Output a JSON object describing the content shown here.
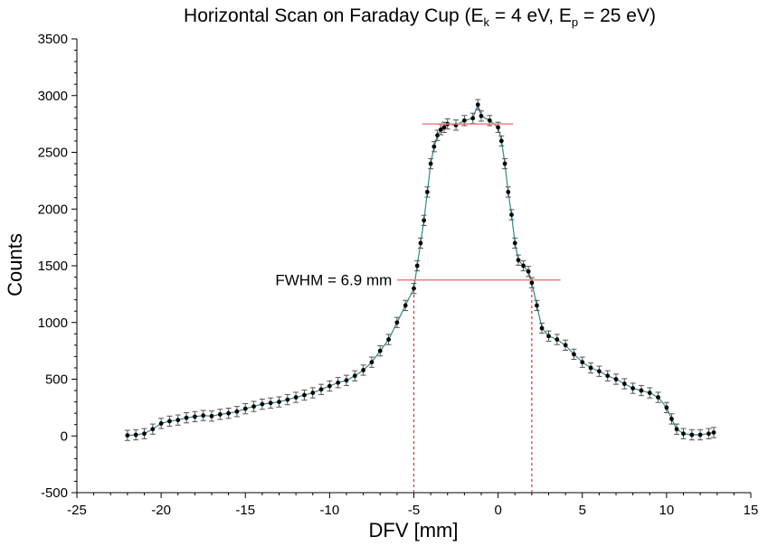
{
  "chart_data": {
    "type": "scatter",
    "title": {
      "prefix": "Horizontal Scan on Faraday Cup (E",
      "sub1": "k",
      "mid": " = 4 eV, E",
      "sub2": "p",
      "suffix": " = 25 eV)"
    },
    "xlabel": "DFV [mm]",
    "ylabel": "Counts",
    "xlim": [
      -25,
      15
    ],
    "ylim": [
      -500,
      3500
    ],
    "xticks": [
      -25,
      -20,
      -15,
      -10,
      -5,
      0,
      5,
      10,
      15
    ],
    "xtick_labels": [
      "-25",
      "-20",
      "-15",
      "-10",
      "-5",
      "0",
      "5",
      "10",
      "15"
    ],
    "yticks": [
      -500,
      0,
      500,
      1000,
      1500,
      2000,
      2500,
      3000,
      3500
    ],
    "ytick_labels": [
      "-500",
      "0",
      "500",
      "1000",
      "1500",
      "2000",
      "2500",
      "3000",
      "3500"
    ],
    "grid": false,
    "series": [
      {
        "marker_color": "#000000",
        "line_color": "#2a8c8c",
        "error": 45,
        "points": [
          [
            -22.0,
            5
          ],
          [
            -21.5,
            10
          ],
          [
            -21.0,
            20
          ],
          [
            -20.5,
            60
          ],
          [
            -20.0,
            110
          ],
          [
            -19.5,
            130
          ],
          [
            -19.0,
            140
          ],
          [
            -18.5,
            160
          ],
          [
            -18.0,
            170
          ],
          [
            -17.5,
            180
          ],
          [
            -17.0,
            175
          ],
          [
            -16.5,
            190
          ],
          [
            -16.0,
            200
          ],
          [
            -15.5,
            215
          ],
          [
            -15.0,
            240
          ],
          [
            -14.5,
            260
          ],
          [
            -14.0,
            280
          ],
          [
            -13.5,
            290
          ],
          [
            -13.0,
            300
          ],
          [
            -12.5,
            320
          ],
          [
            -12.0,
            340
          ],
          [
            -11.5,
            360
          ],
          [
            -11.0,
            380
          ],
          [
            -10.5,
            410
          ],
          [
            -10.0,
            440
          ],
          [
            -9.5,
            470
          ],
          [
            -9.0,
            490
          ],
          [
            -8.5,
            530
          ],
          [
            -8.0,
            580
          ],
          [
            -7.5,
            650
          ],
          [
            -7.0,
            750
          ],
          [
            -6.5,
            850
          ],
          [
            -6.0,
            1000
          ],
          [
            -5.5,
            1150
          ],
          [
            -5.0,
            1300
          ],
          [
            -4.8,
            1500
          ],
          [
            -4.6,
            1700
          ],
          [
            -4.4,
            1900
          ],
          [
            -4.2,
            2150
          ],
          [
            -4.0,
            2400
          ],
          [
            -3.8,
            2550
          ],
          [
            -3.6,
            2650
          ],
          [
            -3.4,
            2700
          ],
          [
            -3.2,
            2720
          ],
          [
            -3.0,
            2750
          ],
          [
            -2.5,
            2740
          ],
          [
            -2.0,
            2780
          ],
          [
            -1.5,
            2800
          ],
          [
            -1.2,
            2920
          ],
          [
            -1.0,
            2820
          ],
          [
            -0.5,
            2780
          ],
          [
            0.0,
            2720
          ],
          [
            0.2,
            2600
          ],
          [
            0.4,
            2400
          ],
          [
            0.6,
            2150
          ],
          [
            0.8,
            1950
          ],
          [
            1.0,
            1700
          ],
          [
            1.2,
            1550
          ],
          [
            1.5,
            1500
          ],
          [
            1.8,
            1450
          ],
          [
            2.0,
            1350
          ],
          [
            2.3,
            1150
          ],
          [
            2.6,
            950
          ],
          [
            3.0,
            880
          ],
          [
            3.5,
            850
          ],
          [
            4.0,
            800
          ],
          [
            4.5,
            720
          ],
          [
            5.0,
            650
          ],
          [
            5.5,
            600
          ],
          [
            6.0,
            570
          ],
          [
            6.5,
            530
          ],
          [
            7.0,
            500
          ],
          [
            7.5,
            460
          ],
          [
            8.0,
            420
          ],
          [
            8.5,
            400
          ],
          [
            9.0,
            380
          ],
          [
            9.5,
            340
          ],
          [
            10.0,
            250
          ],
          [
            10.3,
            150
          ],
          [
            10.6,
            60
          ],
          [
            11.0,
            20
          ],
          [
            11.5,
            10
          ],
          [
            12.0,
            10
          ],
          [
            12.5,
            20
          ],
          [
            12.8,
            30
          ]
        ]
      }
    ],
    "annotations": {
      "top_line": {
        "x1": -4.5,
        "x2": 0.9,
        "y": 2750,
        "color": "#f08080"
      },
      "half_line": {
        "x1": -6.0,
        "x2": 3.7,
        "y": 1375,
        "color": "#f08080"
      },
      "vlines": [
        {
          "x": -5.0,
          "y1": -500,
          "y2": 1375,
          "color": "#e03030"
        },
        {
          "x": 2.0,
          "y1": -500,
          "y2": 1375,
          "color": "#e03030"
        }
      ],
      "fwhm_label": "FWHM = 6.9 mm",
      "fwhm_label_x": -6.3,
      "fwhm_label_y": 1375
    }
  }
}
